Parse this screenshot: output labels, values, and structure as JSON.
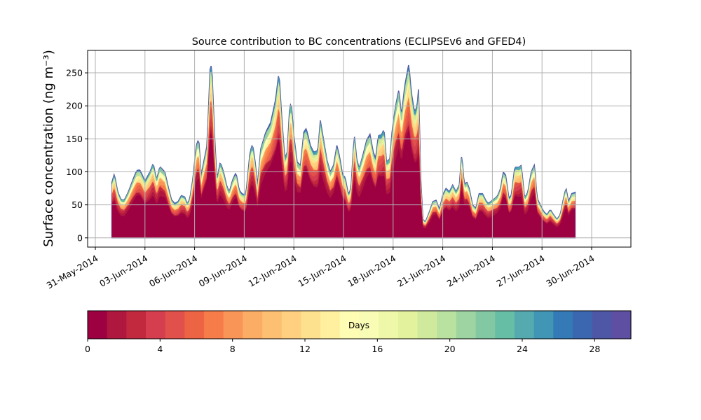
{
  "chart_data": {
    "type": "area",
    "title": "Source contribution to BC concentrations (ECLIPSEv6 and GFED4)",
    "xlabel": "",
    "ylabel": "Surface concentration (ng m⁻³)",
    "x_start": "2014-06-01",
    "x_end": "2014-06-31",
    "xlim": [
      "2014-05-31",
      "2014-07-02"
    ],
    "ylim": [
      -14,
      284
    ],
    "grid": true,
    "xticks": [
      "31-May-2014",
      "03-Jun-2014",
      "06-Jun-2014",
      "09-Jun-2014",
      "12-Jun-2014",
      "15-Jun-2014",
      "18-Jun-2014",
      "21-Jun-2014",
      "24-Jun-2014",
      "27-Jun-2014",
      "30-Jun-2014"
    ],
    "yticks": [
      "0",
      "50",
      "100",
      "150",
      "200",
      "250"
    ],
    "stacking": "cumulative by source age in days (0-30)",
    "total": [
      [
        1.0,
        84
      ],
      [
        1.15,
        97
      ],
      [
        1.35,
        70
      ],
      [
        1.55,
        58
      ],
      [
        1.75,
        57
      ],
      [
        2.0,
        70
      ],
      [
        2.3,
        90
      ],
      [
        2.5,
        102
      ],
      [
        2.7,
        103
      ],
      [
        3.0,
        86
      ],
      [
        3.3,
        100
      ],
      [
        3.5,
        113
      ],
      [
        3.7,
        88
      ],
      [
        3.9,
        108
      ],
      [
        4.2,
        100
      ],
      [
        4.4,
        78
      ],
      [
        4.6,
        58
      ],
      [
        4.8,
        52
      ],
      [
        5.0,
        55
      ],
      [
        5.2,
        64
      ],
      [
        5.4,
        62
      ],
      [
        5.55,
        52
      ],
      [
        5.7,
        58
      ],
      [
        5.9,
        90
      ],
      [
        6.1,
        140
      ],
      [
        6.25,
        150
      ],
      [
        6.4,
        95
      ],
      [
        6.55,
        115
      ],
      [
        6.75,
        140
      ],
      [
        6.85,
        200
      ],
      [
        6.95,
        266
      ],
      [
        7.05,
        255
      ],
      [
        7.2,
        160
      ],
      [
        7.35,
        88
      ],
      [
        7.55,
        115
      ],
      [
        7.75,
        100
      ],
      [
        7.95,
        78
      ],
      [
        8.1,
        70
      ],
      [
        8.3,
        88
      ],
      [
        8.5,
        99
      ],
      [
        8.7,
        72
      ],
      [
        8.9,
        66
      ],
      [
        9.1,
        66
      ],
      [
        9.35,
        130
      ],
      [
        9.5,
        142
      ],
      [
        9.65,
        118
      ],
      [
        9.8,
        80
      ],
      [
        10.0,
        135
      ],
      [
        10.3,
        160
      ],
      [
        10.6,
        175
      ],
      [
        10.9,
        210
      ],
      [
        11.1,
        252
      ],
      [
        11.25,
        190
      ],
      [
        11.45,
        120
      ],
      [
        11.6,
        130
      ],
      [
        11.75,
        200
      ],
      [
        11.85,
        203
      ],
      [
        12.0,
        155
      ],
      [
        12.2,
        115
      ],
      [
        12.4,
        110
      ],
      [
        12.6,
        160
      ],
      [
        12.75,
        166
      ],
      [
        13.0,
        140
      ],
      [
        13.2,
        130
      ],
      [
        13.45,
        132
      ],
      [
        13.6,
        178
      ],
      [
        13.8,
        148
      ],
      [
        14.0,
        118
      ],
      [
        14.2,
        100
      ],
      [
        14.4,
        110
      ],
      [
        14.6,
        140
      ],
      [
        14.75,
        125
      ],
      [
        14.95,
        95
      ],
      [
        15.1,
        92
      ],
      [
        15.3,
        65
      ],
      [
        15.45,
        75
      ],
      [
        15.65,
        157
      ],
      [
        15.8,
        120
      ],
      [
        15.95,
        105
      ],
      [
        16.2,
        128
      ],
      [
        16.4,
        148
      ],
      [
        16.6,
        157
      ],
      [
        16.8,
        130
      ],
      [
        16.95,
        120
      ],
      [
        17.1,
        155
      ],
      [
        17.3,
        156
      ],
      [
        17.45,
        165
      ],
      [
        17.6,
        115
      ],
      [
        17.8,
        120
      ],
      [
        17.95,
        165
      ],
      [
        18.15,
        200
      ],
      [
        18.35,
        225
      ],
      [
        18.5,
        185
      ],
      [
        18.7,
        230
      ],
      [
        18.95,
        264
      ],
      [
        19.1,
        220
      ],
      [
        19.3,
        190
      ],
      [
        19.45,
        200
      ],
      [
        19.55,
        230
      ],
      [
        19.65,
        100
      ],
      [
        19.8,
        28
      ],
      [
        19.95,
        24
      ],
      [
        20.2,
        40
      ],
      [
        20.4,
        55
      ],
      [
        20.6,
        57
      ],
      [
        20.8,
        43
      ],
      [
        21.0,
        65
      ],
      [
        21.2,
        75
      ],
      [
        21.4,
        70
      ],
      [
        21.6,
        80
      ],
      [
        21.8,
        70
      ],
      [
        22.0,
        80
      ],
      [
        22.15,
        128
      ],
      [
        22.3,
        80
      ],
      [
        22.45,
        85
      ],
      [
        22.6,
        75
      ],
      [
        22.8,
        50
      ],
      [
        23.0,
        45
      ],
      [
        23.2,
        67
      ],
      [
        23.4,
        67
      ],
      [
        23.6,
        57
      ],
      [
        23.75,
        52
      ],
      [
        24.0,
        57
      ],
      [
        24.3,
        63
      ],
      [
        24.5,
        75
      ],
      [
        24.65,
        100
      ],
      [
        24.8,
        95
      ],
      [
        25.0,
        60
      ],
      [
        25.15,
        65
      ],
      [
        25.35,
        107
      ],
      [
        25.6,
        107
      ],
      [
        25.75,
        110
      ],
      [
        25.95,
        60
      ],
      [
        26.15,
        70
      ],
      [
        26.35,
        100
      ],
      [
        26.55,
        111
      ],
      [
        26.7,
        60
      ],
      [
        26.9,
        50
      ],
      [
        27.1,
        40
      ],
      [
        27.3,
        35
      ],
      [
        27.5,
        43
      ],
      [
        27.7,
        35
      ],
      [
        27.9,
        28
      ],
      [
        28.1,
        35
      ],
      [
        28.3,
        60
      ],
      [
        28.45,
        76
      ],
      [
        28.6,
        55
      ],
      [
        28.8,
        67
      ],
      [
        29.0,
        69
      ]
    ]
  },
  "colorbar": {
    "label": "Days",
    "range": [
      0,
      30
    ],
    "ticks": [
      "0",
      "4",
      "8",
      "12",
      "16",
      "20",
      "24",
      "28"
    ],
    "colors": [
      "#9e0142",
      "#b0173e",
      "#c2293f",
      "#d53e4f",
      "#e1504a",
      "#ed6445",
      "#f67d4a",
      "#f99657",
      "#fcad65",
      "#fdbf71",
      "#fed07f",
      "#fee18e",
      "#fff09f",
      "#fffcb4",
      "#f8fcb4",
      "#eff8a8",
      "#e3f29c",
      "#cfea9c",
      "#b9e19f",
      "#9dd4a1",
      "#82c9a3",
      "#66bea5",
      "#55aaaf",
      "#4196b5",
      "#337ab6",
      "#3a67b0",
      "#4e56a6",
      "#5e4fa2"
    ]
  }
}
